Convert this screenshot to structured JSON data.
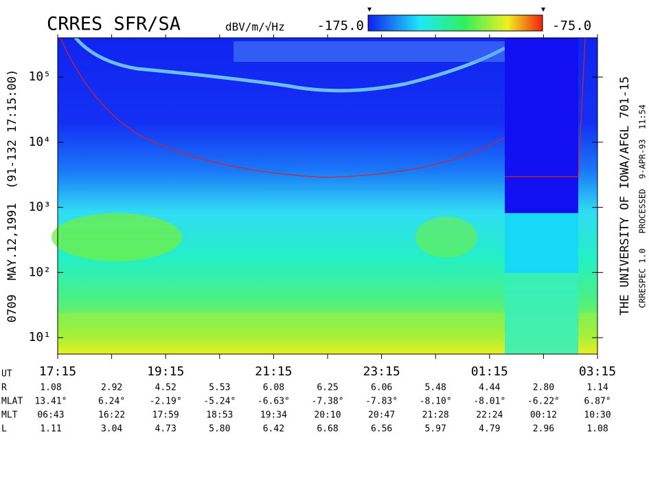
{
  "chart_data": {
    "type": "spectrogram",
    "title": "CRRES SFR/SA",
    "units": "dBV/m/√Hz",
    "colorbar": {
      "ticks": [
        {
          "value": -175,
          "label": "-175.0"
        },
        {
          "value": -75,
          "label": "-75.0"
        }
      ]
    },
    "left_caption": "0709  MAY.12,1991  (91-132 17:15:00)",
    "right_caption": "THE UNIVERSITY OF IOWA/AFGL 701-15",
    "processing_note": "CRRESPEC 1.0   PROCESSED  9-APR-93  11:54",
    "categories": [
      "17:15",
      null,
      "19:15",
      null,
      "21:15",
      null,
      "23:15",
      null,
      "01:15",
      null,
      "03:15"
    ],
    "ylog": true,
    "ylim": [
      5.6,
      400000
    ],
    "yticks": [
      {
        "value": 10,
        "label": "10¹"
      },
      {
        "value": 100,
        "label": "10²"
      },
      {
        "value": 1000,
        "label": "10³"
      },
      {
        "value": 10000,
        "label": "10⁴"
      },
      {
        "value": 100000,
        "label": "10⁵"
      }
    ]
  },
  "ephemeris": {
    "ut_label": "UT",
    "rows": [
      {
        "label": "R",
        "values": [
          "1.08",
          "2.92",
          "4.52",
          "5.53",
          "6.08",
          "6.25",
          "6.06",
          "5.48",
          "4.44",
          "2.80",
          "1.14"
        ]
      },
      {
        "label": "MLAT",
        "values": [
          "13.41°",
          "6.24°",
          "-2.19°",
          "-5.24°",
          "-6.63°",
          "-7.38°",
          "-7.83°",
          "-8.10°",
          "-8.01°",
          "-6.22°",
          "6.87°"
        ]
      },
      {
        "label": "MLT",
        "values": [
          "06:43",
          "16:22",
          "17:59",
          "18:53",
          "19:34",
          "20:10",
          "20:47",
          "21:28",
          "22:24",
          "00:12",
          "10:30"
        ]
      },
      {
        "label": "L",
        "values": [
          "1.11",
          "3.04",
          "4.73",
          "5.80",
          "6.42",
          "6.68",
          "6.56",
          "5.97",
          "4.79",
          "2.96",
          "1.08"
        ]
      }
    ]
  }
}
